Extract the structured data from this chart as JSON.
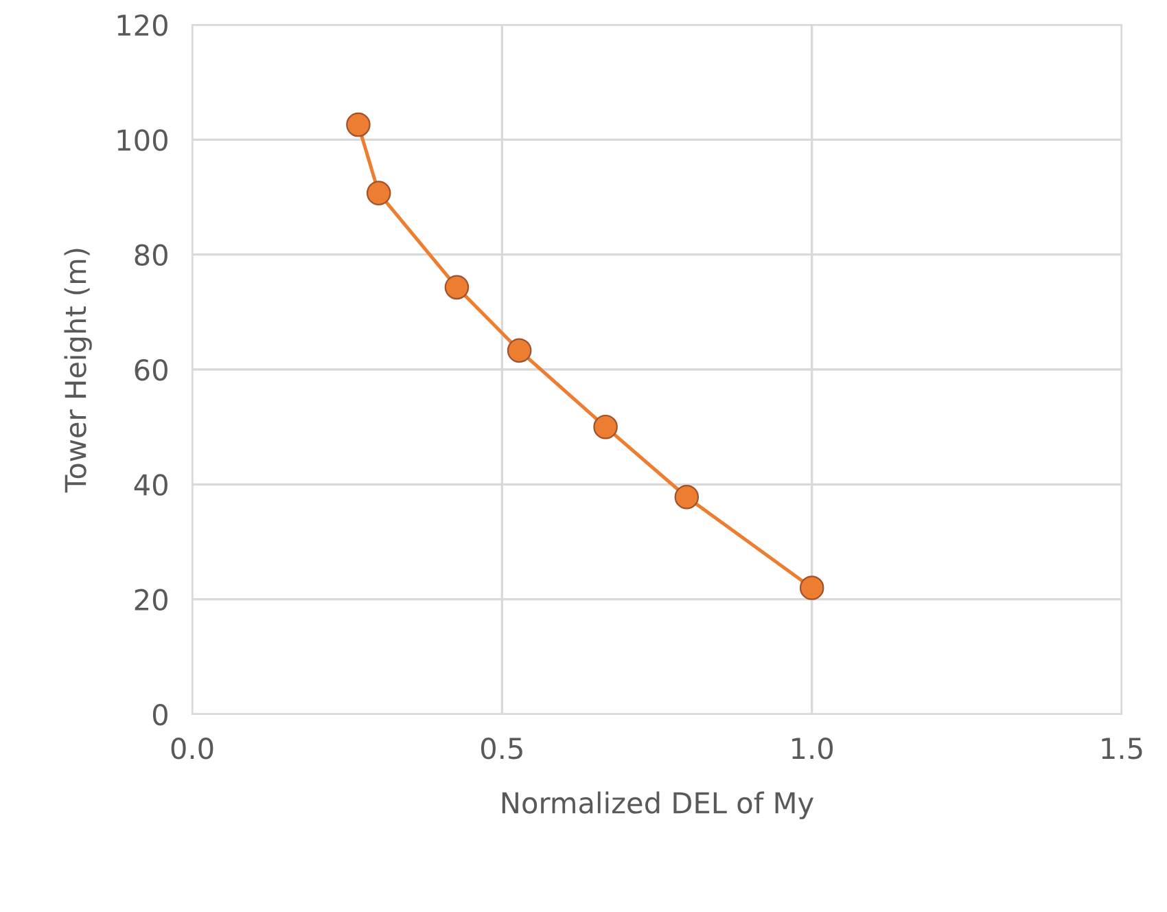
{
  "chart_data": {
    "type": "line",
    "xlabel": "Normalized DEL of My",
    "ylabel": "Tower Height (m)",
    "series": [
      {
        "color": "#ed7d31",
        "x": [
          0.268,
          0.301,
          0.427,
          0.528,
          0.667,
          0.798,
          1.0
        ],
        "values": [
          102.6,
          90.7,
          74.3,
          63.3,
          50.0,
          37.8,
          22.0
        ]
      }
    ],
    "xlim": [
      0,
      1.5
    ],
    "xticks": [
      {
        "value": 0,
        "label": "0.0"
      },
      {
        "value": 0.5,
        "label": "0.5"
      },
      {
        "value": 1,
        "label": "1.0"
      },
      {
        "value": 1.5,
        "label": "1.5"
      }
    ],
    "ylim": [
      0,
      120
    ],
    "yticks": [
      0,
      20,
      40,
      60,
      80,
      100,
      120
    ],
    "grid": true,
    "marker": "circle",
    "line_style": "solid"
  }
}
